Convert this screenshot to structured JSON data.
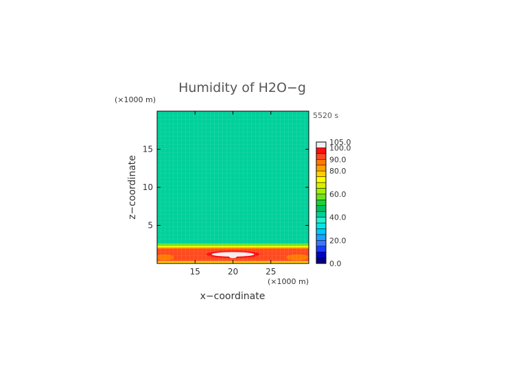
{
  "chart_data": {
    "type": "heatmap",
    "title": "Humidity of H2O−g",
    "time_label": "5520 s",
    "xlabel": "x−coordinate",
    "ylabel": "z−coordinate",
    "x_unit": "(×1000 m)",
    "y_unit": "(×1000 m)",
    "xlim": [
      10,
      30
    ],
    "ylim": [
      0,
      20
    ],
    "x_ticks": [
      15,
      20,
      25
    ],
    "y_ticks": [
      5,
      10,
      15
    ],
    "grid": false,
    "legend": "right",
    "colorbar": {
      "tick_labels": [
        "105.0",
        "100.0",
        "90.0",
        "80.0",
        "60.0",
        "40.0",
        "20.0",
        "0.0"
      ],
      "tick_values": [
        105,
        100,
        90,
        80,
        60,
        40,
        20,
        0
      ],
      "levels": [
        0,
        5,
        10,
        15,
        20,
        25,
        30,
        35,
        40,
        45,
        50,
        55,
        60,
        65,
        70,
        75,
        80,
        85,
        90,
        95,
        100,
        105
      ],
      "colors": [
        "#000080",
        "#0000cc",
        "#1a3cff",
        "#3c78ff",
        "#1ea0ff",
        "#00c8ff",
        "#00e6e6",
        "#20f0d0",
        "#00d09a",
        "#00c060",
        "#18d238",
        "#70e020",
        "#a0f000",
        "#d8f000",
        "#ffff00",
        "#ffd000",
        "#ffa000",
        "#ff7a00",
        "#ff4a20",
        "#ff1010",
        "#f0f0f0"
      ]
    },
    "layers": [
      {
        "z_from": 2.6,
        "z_to": 20,
        "value": 42
      },
      {
        "z_from": 2.3,
        "z_to": 2.6,
        "value": 55
      },
      {
        "z_from": 2.1,
        "z_to": 2.3,
        "value": 72
      },
      {
        "z_from": 1.9,
        "z_to": 2.1,
        "value": 85
      },
      {
        "z_from": 0.3,
        "z_to": 1.9,
        "value": 93
      },
      {
        "z_from": 0,
        "z_to": 0.3,
        "value": 76
      }
    ],
    "features": [
      {
        "x": 20,
        "z": 1.2,
        "rx": 3.5,
        "rz": 0.5,
        "value": 97
      },
      {
        "x": 20,
        "z": 1.2,
        "rx": 2.8,
        "rz": 0.3,
        "value": 102
      },
      {
        "x": 20,
        "z": 0.9,
        "rx": 0.5,
        "rz": 0.2,
        "value": 102
      },
      {
        "x": 28.5,
        "z": 0.8,
        "rx": 1.5,
        "rz": 0.4,
        "value": 88
      },
      {
        "x": 11,
        "z": 0.8,
        "rx": 1.2,
        "rz": 0.4,
        "value": 88
      }
    ]
  }
}
